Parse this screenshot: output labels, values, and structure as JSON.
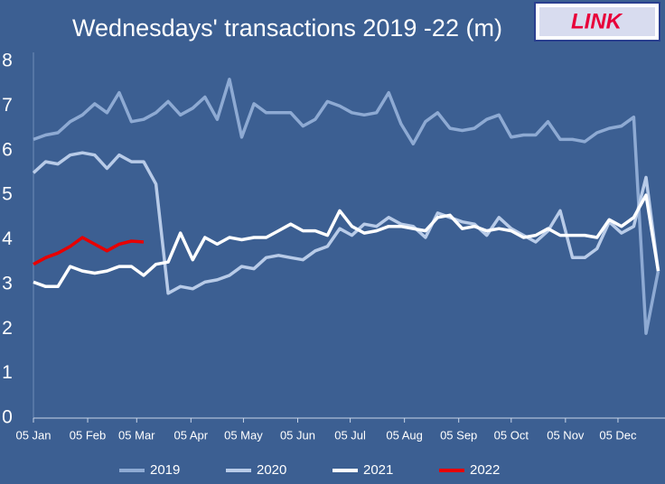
{
  "chart_data": {
    "type": "line",
    "title": "Wednesdays' transactions 2019 -22 (m)",
    "logo": "LINK",
    "x": [
      0,
      7,
      14,
      21,
      28,
      35,
      42,
      49,
      56,
      63,
      70,
      77,
      84,
      91,
      98,
      105,
      112,
      119,
      126,
      133,
      140,
      147,
      154,
      161,
      168,
      175,
      182,
      189,
      196,
      203,
      210,
      217,
      224,
      231,
      238,
      245,
      252,
      259,
      266,
      273,
      280,
      287,
      294,
      301,
      308,
      315,
      322,
      329,
      336,
      343,
      350,
      357
    ],
    "xlim": [
      0,
      361
    ],
    "xticks": [
      {
        "value": 0,
        "label": "05 Jan"
      },
      {
        "value": 31,
        "label": "05 Feb"
      },
      {
        "value": 59,
        "label": "05 Mar"
      },
      {
        "value": 90,
        "label": "05 Apr"
      },
      {
        "value": 120,
        "label": "05 May"
      },
      {
        "value": 151,
        "label": "05 Jun"
      },
      {
        "value": 181,
        "label": "05 Jul"
      },
      {
        "value": 212,
        "label": "05 Aug"
      },
      {
        "value": 243,
        "label": "05 Sep"
      },
      {
        "value": 273,
        "label": "05 Oct"
      },
      {
        "value": 304,
        "label": "05 Nov"
      },
      {
        "value": 334,
        "label": "05 Dec"
      }
    ],
    "ylim": [
      0,
      8
    ],
    "yticks": [
      0,
      1,
      2,
      3,
      4,
      5,
      6,
      7,
      8
    ],
    "grid": false,
    "legend": "bottom",
    "series": [
      {
        "name": "2019",
        "color": "#8eaad3",
        "values": [
          6.25,
          6.35,
          6.4,
          6.65,
          6.8,
          7.05,
          6.85,
          7.3,
          6.65,
          6.7,
          6.85,
          7.1,
          6.8,
          6.95,
          7.2,
          6.7,
          7.6,
          6.3,
          7.05,
          6.85,
          6.85,
          6.85,
          6.55,
          6.7,
          7.1,
          7.0,
          6.85,
          6.8,
          6.85,
          7.3,
          6.6,
          6.15,
          6.65,
          6.85,
          6.5,
          6.45,
          6.5,
          6.7,
          6.8,
          6.3,
          6.35,
          6.35,
          6.65,
          6.25,
          6.25,
          6.2,
          6.4,
          6.5,
          6.55,
          6.75,
          1.9,
          3.3
        ]
      },
      {
        "name": "2020",
        "color": "#b8cbe8",
        "values": [
          5.5,
          5.75,
          5.7,
          5.9,
          5.95,
          5.9,
          5.6,
          5.9,
          5.75,
          5.75,
          5.25,
          2.8,
          2.95,
          2.9,
          3.05,
          3.1,
          3.2,
          3.4,
          3.35,
          3.6,
          3.65,
          3.6,
          3.55,
          3.75,
          3.85,
          4.25,
          4.1,
          4.35,
          4.3,
          4.5,
          4.35,
          4.3,
          4.05,
          4.6,
          4.5,
          4.4,
          4.35,
          4.1,
          4.5,
          4.25,
          4.1,
          3.95,
          4.2,
          4.65,
          3.6,
          3.6,
          3.8,
          4.4,
          4.15,
          4.3,
          5.4,
          3.3
        ]
      },
      {
        "name": "2021",
        "color": "#ffffff",
        "values": [
          3.05,
          2.95,
          2.95,
          3.4,
          3.3,
          3.25,
          3.3,
          3.4,
          3.4,
          3.2,
          3.45,
          3.5,
          4.15,
          3.55,
          4.05,
          3.9,
          4.05,
          4.0,
          4.05,
          4.05,
          4.2,
          4.35,
          4.2,
          4.2,
          4.1,
          4.65,
          4.3,
          4.15,
          4.2,
          4.3,
          4.3,
          4.25,
          4.2,
          4.5,
          4.55,
          4.25,
          4.3,
          4.2,
          4.25,
          4.2,
          4.05,
          4.1,
          4.25,
          4.1,
          4.1,
          4.1,
          4.05,
          4.45,
          4.3,
          4.5,
          5.0,
          3.3
        ]
      },
      {
        "name": "2022",
        "color": "#e80000",
        "values": [
          3.45,
          3.6,
          3.7,
          3.85,
          4.05,
          3.9,
          3.75,
          3.9,
          3.97,
          3.95,
          null,
          null,
          null,
          null,
          null,
          null,
          null,
          null,
          null,
          null,
          null,
          null,
          null,
          null,
          null,
          null,
          null,
          null,
          null,
          null,
          null,
          null,
          null,
          null,
          null,
          null,
          null,
          null,
          null,
          null,
          null,
          null,
          null,
          null,
          null,
          null,
          null,
          null,
          null,
          null,
          null,
          null
        ]
      }
    ]
  }
}
